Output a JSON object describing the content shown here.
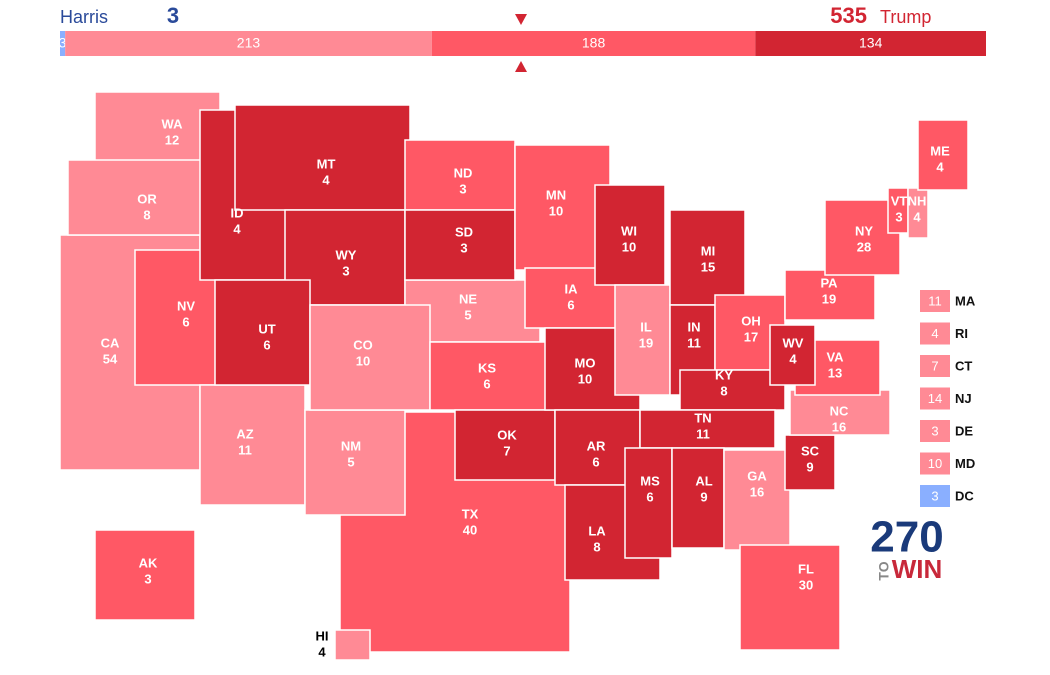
{
  "header": {
    "left_name": "Harris",
    "left_total": 3,
    "right_total": 535,
    "right_name": "Trump"
  },
  "bar": {
    "segments": [
      {
        "value": 3,
        "color": "#8aafff"
      },
      {
        "value": 213,
        "color": "#ff8a95"
      },
      {
        "value": 188,
        "color": "#ff5865"
      },
      {
        "value": 134,
        "color": "#d22532"
      }
    ]
  },
  "states": [
    {
      "abbr": "CA",
      "ev": 54,
      "color": "#ff8a95"
    },
    {
      "abbr": "WA",
      "ev": 12,
      "color": "#ff8a95"
    },
    {
      "abbr": "OR",
      "ev": 8,
      "color": "#ff8a95"
    },
    {
      "abbr": "NV",
      "ev": 6,
      "color": "#ff5865"
    },
    {
      "abbr": "AZ",
      "ev": 11,
      "color": "#ff8a95"
    },
    {
      "abbr": "ID",
      "ev": 4,
      "color": "#d22532"
    },
    {
      "abbr": "MT",
      "ev": 4,
      "color": "#d22532"
    },
    {
      "abbr": "WY",
      "ev": 3,
      "color": "#d22532"
    },
    {
      "abbr": "UT",
      "ev": 6,
      "color": "#d22532"
    },
    {
      "abbr": "TX",
      "ev": 40,
      "color": "#ff5865"
    },
    {
      "abbr": "NM",
      "ev": 5,
      "color": "#ff8a95"
    },
    {
      "abbr": "NE",
      "ev": 5,
      "color": "#ff8a95"
    },
    {
      "abbr": "CO",
      "ev": 10,
      "color": "#ff8a95"
    },
    {
      "abbr": "ND",
      "ev": 3,
      "color": "#ff5865"
    },
    {
      "abbr": "SD",
      "ev": 3,
      "color": "#d22532"
    },
    {
      "abbr": "KS",
      "ev": 6,
      "color": "#ff5865"
    },
    {
      "abbr": "OK",
      "ev": 7,
      "color": "#d22532"
    },
    {
      "abbr": "MN",
      "ev": 10,
      "color": "#ff5865"
    },
    {
      "abbr": "IA",
      "ev": 6,
      "color": "#ff5865"
    },
    {
      "abbr": "MO",
      "ev": 10,
      "color": "#d22532"
    },
    {
      "abbr": "AR",
      "ev": 6,
      "color": "#d22532"
    },
    {
      "abbr": "LA",
      "ev": 8,
      "color": "#d22532"
    },
    {
      "abbr": "WI",
      "ev": 10,
      "color": "#d22532"
    },
    {
      "abbr": "IL",
      "ev": 19,
      "color": "#ff8a95"
    },
    {
      "abbr": "MI",
      "ev": 15,
      "color": "#d22532"
    },
    {
      "abbr": "IN",
      "ev": 11,
      "color": "#d22532"
    },
    {
      "abbr": "OH",
      "ev": 17,
      "color": "#ff5865"
    },
    {
      "abbr": "KY",
      "ev": 8,
      "color": "#d22532"
    },
    {
      "abbr": "TN",
      "ev": 11,
      "color": "#d22532"
    },
    {
      "abbr": "MS",
      "ev": 6,
      "color": "#d22532"
    },
    {
      "abbr": "AL",
      "ev": 9,
      "color": "#d22532"
    },
    {
      "abbr": "GA",
      "ev": 16,
      "color": "#ff8a95"
    },
    {
      "abbr": "FL",
      "ev": 30,
      "color": "#ff5865"
    },
    {
      "abbr": "SC",
      "ev": 9,
      "color": "#d22532"
    },
    {
      "abbr": "NC",
      "ev": 16,
      "color": "#ff8a95"
    },
    {
      "abbr": "VA",
      "ev": 13,
      "color": "#ff5865"
    },
    {
      "abbr": "WV",
      "ev": 4,
      "color": "#d22532"
    },
    {
      "abbr": "PA",
      "ev": 19,
      "color": "#ff5865"
    },
    {
      "abbr": "NY",
      "ev": 28,
      "color": "#ff5865"
    },
    {
      "abbr": "VT",
      "ev": 3,
      "color": "#ff5865"
    },
    {
      "abbr": "NH",
      "ev": 4,
      "color": "#ff8a95"
    },
    {
      "abbr": "ME",
      "ev": 4,
      "color": "#ff5865"
    },
    {
      "abbr": "AK",
      "ev": 3,
      "color": "#ff5865"
    },
    {
      "abbr": "HI",
      "ev": 4,
      "color": "#ff8a95"
    }
  ],
  "small_states": [
    {
      "abbr": "MA",
      "ev": 11,
      "color": "#ff8a95"
    },
    {
      "abbr": "RI",
      "ev": 4,
      "color": "#ff8a95"
    },
    {
      "abbr": "CT",
      "ev": 7,
      "color": "#ff8a95"
    },
    {
      "abbr": "NJ",
      "ev": 14,
      "color": "#ff8a95"
    },
    {
      "abbr": "DE",
      "ev": 3,
      "color": "#ff8a95"
    },
    {
      "abbr": "MD",
      "ev": 10,
      "color": "#ff8a95"
    },
    {
      "abbr": "DC",
      "ev": 3,
      "color": "#8aafff"
    }
  ],
  "logo": {
    "number": "270",
    "to": "TO",
    "win": "WIN"
  }
}
